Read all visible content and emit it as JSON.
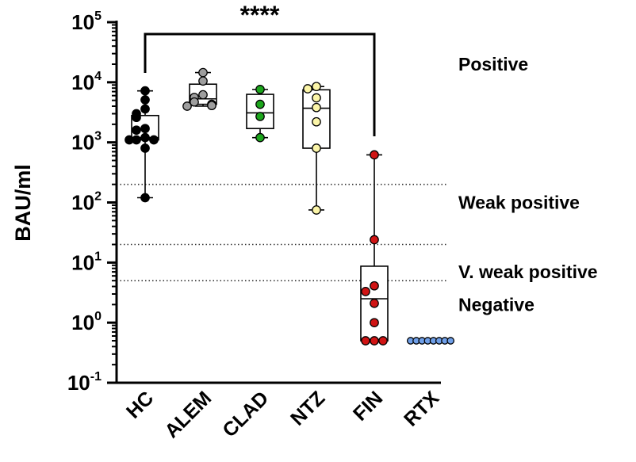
{
  "chart_data": {
    "type": "box",
    "ylabel": "BAU/ml",
    "yscale": "log",
    "ylim": [
      0.1,
      100000
    ],
    "y_ticks": [
      {
        "base": "10",
        "exp": "5",
        "value": 100000
      },
      {
        "base": "10",
        "exp": "4",
        "value": 10000
      },
      {
        "base": "10",
        "exp": "3",
        "value": 1000
      },
      {
        "base": "10",
        "exp": "2",
        "value": 100
      },
      {
        "base": "10",
        "exp": "1",
        "value": 10
      },
      {
        "base": "10",
        "exp": "0",
        "value": 1
      },
      {
        "base": "10",
        "exp": "-1",
        "value": 0.1
      }
    ],
    "categories": [
      "HC",
      "ALEM",
      "CLAD",
      "NTZ",
      "FIN",
      "RTX"
    ],
    "thresholds": [
      {
        "value": 200,
        "style": "dotted"
      },
      {
        "value": 20,
        "style": "dotted"
      },
      {
        "value": 5,
        "style": "dotted"
      }
    ],
    "zone_labels": [
      {
        "text": "Positive",
        "value": 20000
      },
      {
        "text": "Weak positive",
        "value": 100
      },
      {
        "text": "V. weak positive",
        "value": 7
      },
      {
        "text": "Negative",
        "value": 2
      }
    ],
    "significance": {
      "from": "HC",
      "to": "FIN",
      "label": "****",
      "value": 100000
    },
    "groups": [
      {
        "name": "HC",
        "color": "#000000",
        "min": 120,
        "q1": 1100,
        "median": 1200,
        "q3": 2800,
        "max": 7200,
        "points": [
          7200,
          5100,
          3600,
          3000,
          2600,
          1700,
          1600,
          1200,
          1100,
          1100,
          1100,
          800,
          120
        ]
      },
      {
        "name": "ALEM",
        "color": "#9e9e9e",
        "min": 4000,
        "q1": 4300,
        "median": 5300,
        "q3": 9300,
        "max": 14500,
        "points": [
          14500,
          10500,
          6200,
          5600,
          4700,
          4300,
          4100,
          4000
        ]
      },
      {
        "name": "CLAD",
        "color": "#1ca61c",
        "min": 1200,
        "q1": 1700,
        "median": 3100,
        "q3": 6300,
        "max": 7600,
        "points": [
          7600,
          4300,
          2700,
          1200
        ]
      },
      {
        "name": "NTZ",
        "color": "#fbf5a8",
        "min": 75,
        "q1": 800,
        "median": 3700,
        "q3": 7500,
        "max": 8500,
        "points": [
          8500,
          7800,
          5500,
          3800,
          2200,
          800,
          75
        ]
      },
      {
        "name": "FIN",
        "color": "#d01414",
        "min": 0.5,
        "q1": 0.5,
        "median": 2.5,
        "q3": 8.7,
        "max": 620,
        "points": [
          620,
          24,
          4.1,
          3.3,
          2.1,
          1.0,
          0.5,
          0.5,
          0.5
        ]
      },
      {
        "name": "RTX",
        "color": "#6f9fe8",
        "min": 0.5,
        "q1": 0.5,
        "median": 0.5,
        "q3": 0.5,
        "max": 0.5,
        "points": [
          0.5,
          0.5,
          0.5,
          0.5,
          0.5,
          0.5,
          0.5,
          0.5
        ]
      }
    ]
  }
}
